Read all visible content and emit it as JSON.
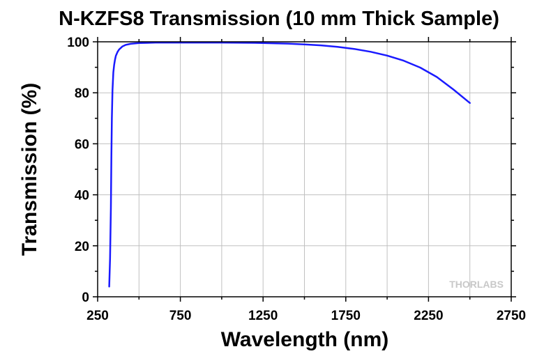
{
  "chart_data": {
    "type": "line",
    "title": "N-KZFS8 Transmission (10 mm Thick Sample)",
    "xlabel": "Wavelength (nm)",
    "ylabel": "Transmission (%)",
    "xlim": [
      250,
      2750
    ],
    "ylim": [
      0,
      100
    ],
    "xticks": [
      250,
      750,
      1250,
      1750,
      2250,
      2750
    ],
    "yticks": [
      0,
      20,
      40,
      60,
      80,
      100
    ],
    "x_minor_step": 250,
    "y_minor_step": 10,
    "grid": true,
    "watermark": "THORLABS",
    "series": [
      {
        "color": "#1a1aff",
        "x": [
          320,
          325,
          330,
          333,
          336,
          340,
          345,
          350,
          355,
          360,
          370,
          380,
          390,
          400,
          420,
          450,
          500,
          550,
          600,
          700,
          800,
          1000,
          1200,
          1400,
          1500,
          1600,
          1700,
          1800,
          1900,
          2000,
          2100,
          2200,
          2300,
          2400,
          2500
        ],
        "y": [
          4,
          15,
          35,
          55,
          70,
          81,
          88,
          91,
          93,
          94.5,
          96,
          97,
          97.6,
          98.2,
          98.8,
          99.2,
          99.5,
          99.6,
          99.7,
          99.7,
          99.7,
          99.7,
          99.6,
          99.3,
          99.0,
          98.6,
          98.0,
          97.2,
          96.1,
          94.6,
          92.6,
          89.9,
          86.2,
          81.3,
          76.0
        ]
      }
    ]
  }
}
